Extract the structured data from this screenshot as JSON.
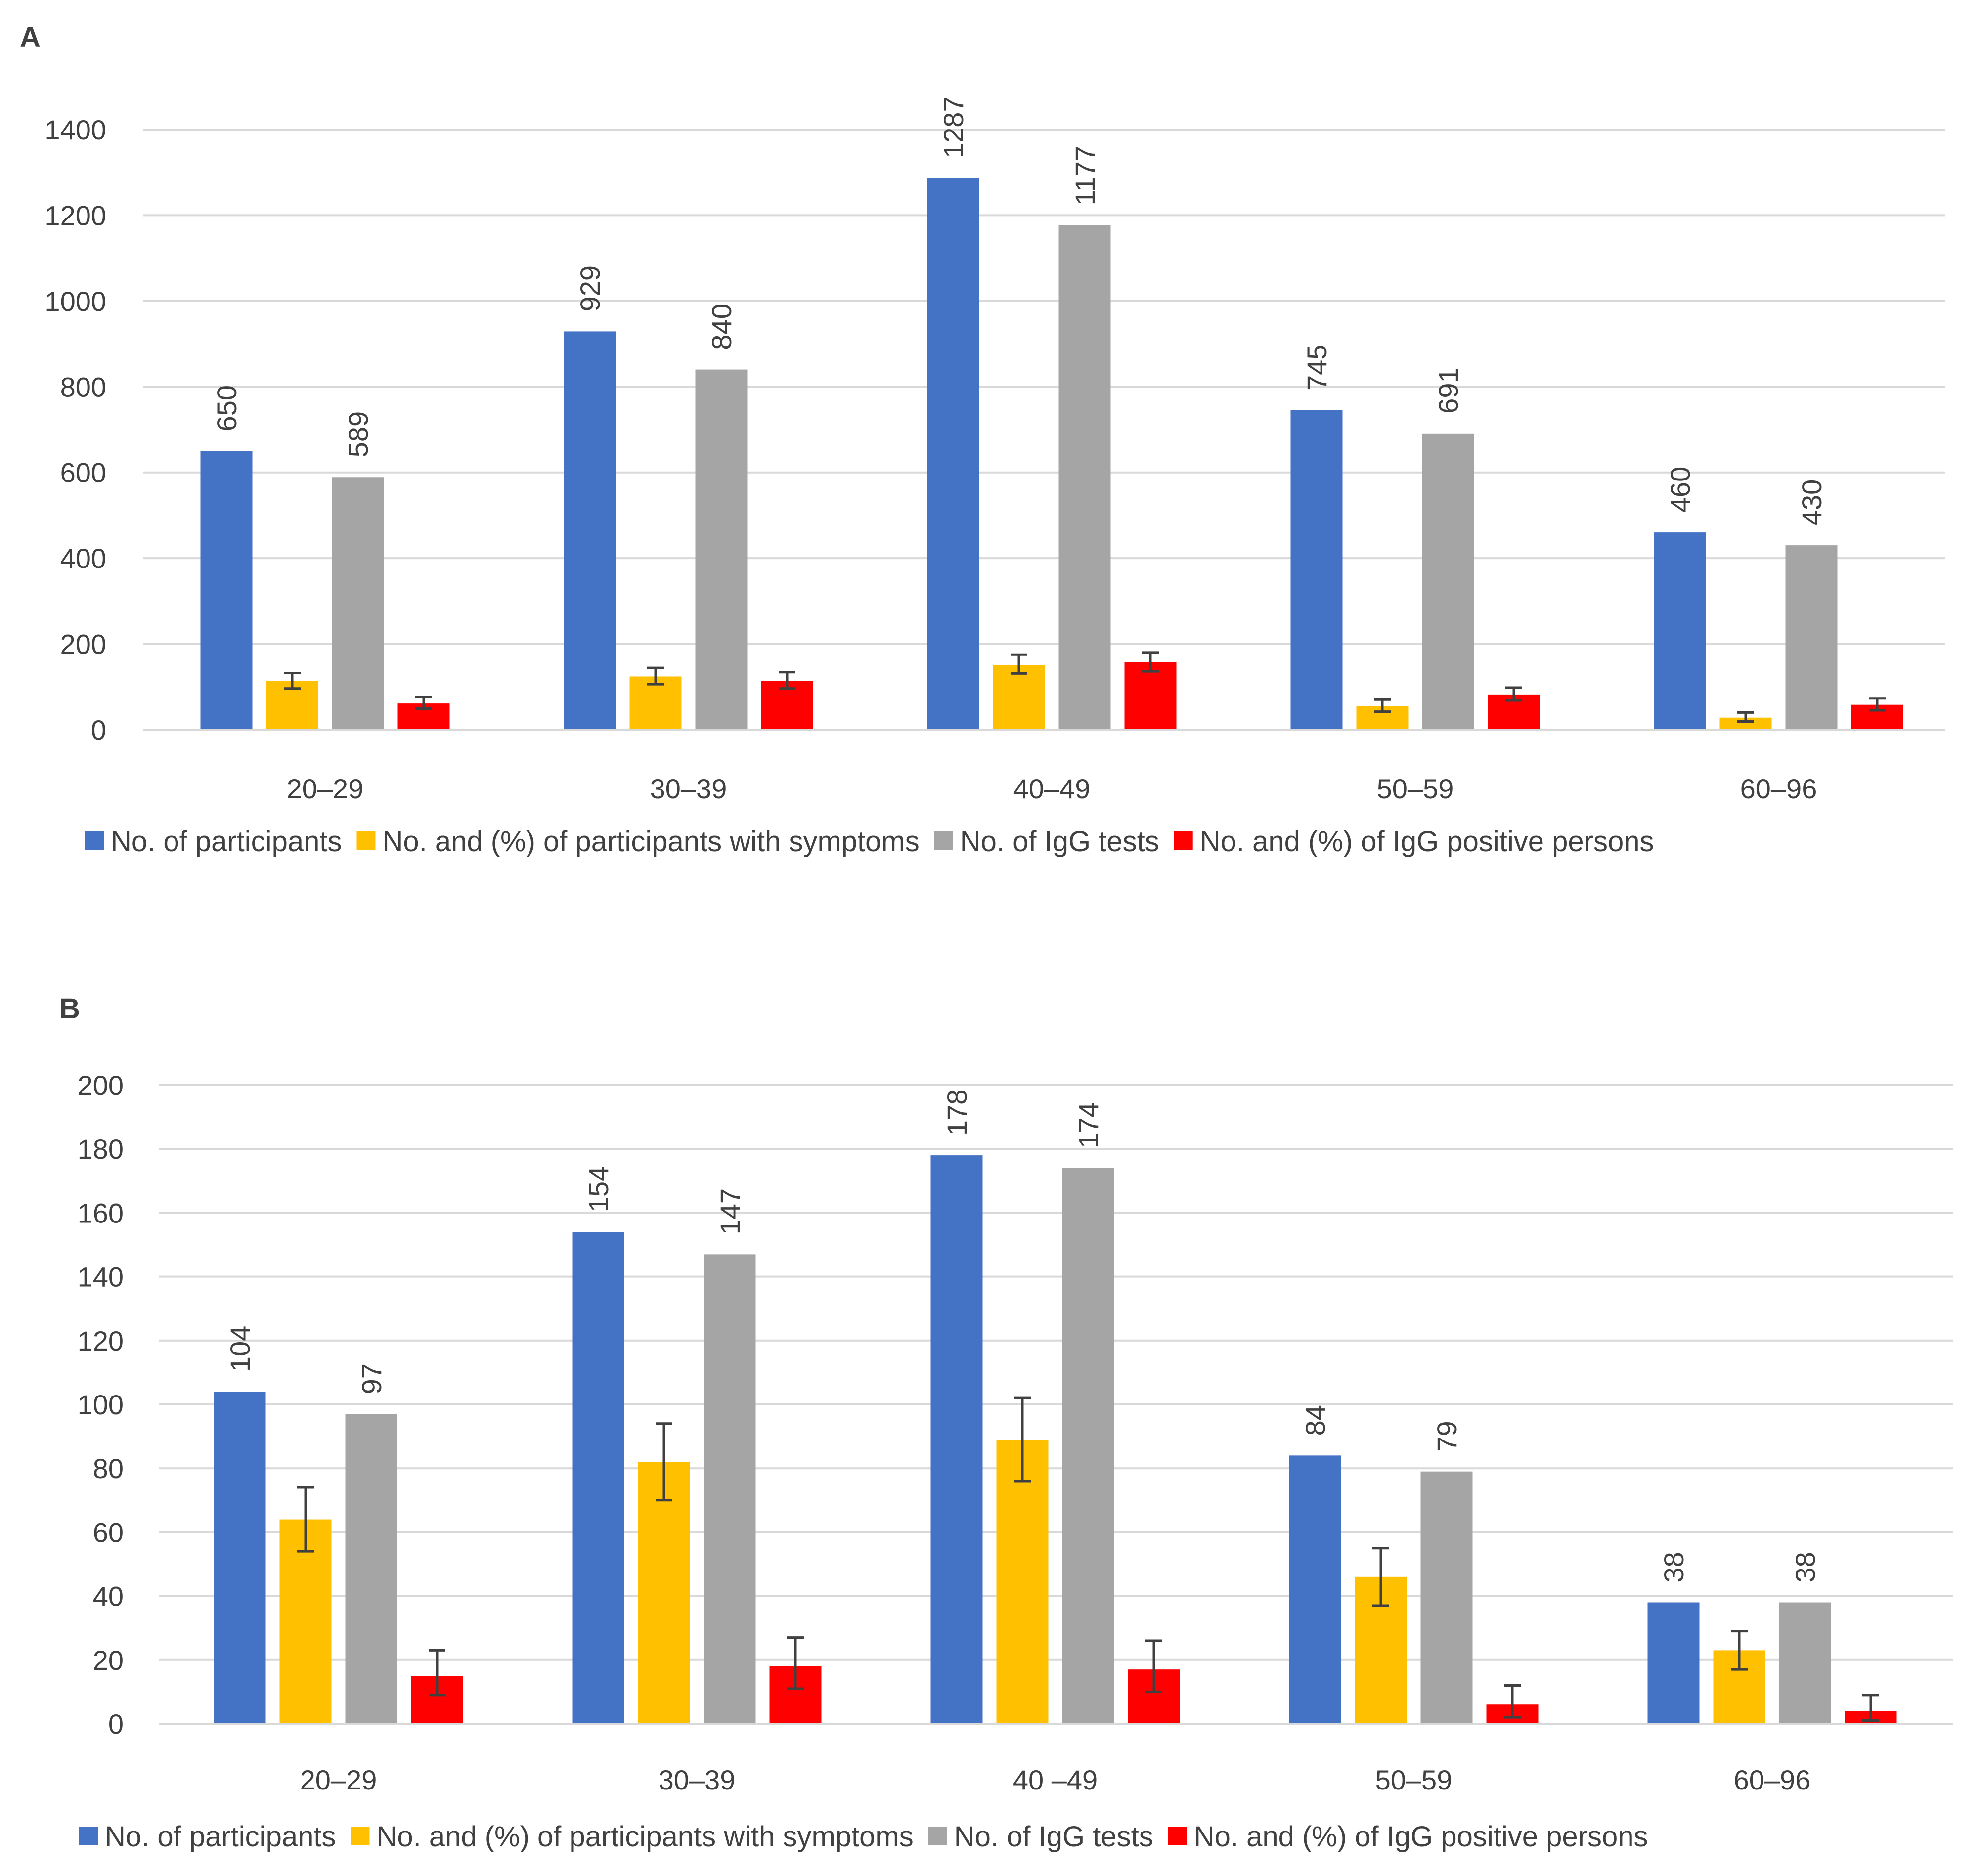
{
  "chart_data": [
    {
      "panel_label": "A",
      "type": "bar",
      "categories": [
        "20–29",
        "30–39",
        "40–49",
        "50–59",
        "60–96"
      ],
      "ylim": [
        0,
        1400
      ],
      "yticks": [
        0,
        200,
        400,
        600,
        800,
        1000,
        1200,
        1400
      ],
      "grid": true,
      "legend_position": "bottom",
      "series": [
        {
          "name": "No. of participants",
          "color": "#4472C4",
          "values": [
            650,
            929,
            1287,
            745,
            460
          ],
          "labels": [
            "650",
            "929",
            "1287",
            "745",
            "460"
          ]
        },
        {
          "name": "No. and (%) of participants with symptoms",
          "color": "#FFC000",
          "values": [
            113,
            124,
            151,
            55,
            28
          ],
          "error": [
            [
              96,
              132
            ],
            [
              106,
              144
            ],
            [
              131,
              175
            ],
            [
              42,
              70
            ],
            [
              19,
              40
            ]
          ]
        },
        {
          "name": "No. of IgG tests",
          "color": "#A5A5A5",
          "values": [
            589,
            840,
            1177,
            691,
            430
          ],
          "labels": [
            "589",
            "840",
            "1177",
            "691",
            "430"
          ]
        },
        {
          "name": "No. and (%) of IgG positive persons",
          "color": "#FF0000",
          "values": [
            61,
            114,
            157,
            82,
            58
          ],
          "error": [
            [
              49,
              76
            ],
            [
              96,
              134
            ],
            [
              136,
              180
            ],
            [
              68,
              98
            ],
            [
              45,
              73
            ]
          ]
        }
      ]
    },
    {
      "panel_label": "B",
      "type": "bar",
      "categories": [
        "20–29",
        "30–39",
        "40 –49",
        "50–59",
        "60–96"
      ],
      "ylim": [
        0,
        200
      ],
      "yticks": [
        0,
        20,
        40,
        60,
        80,
        100,
        120,
        140,
        160,
        180,
        200
      ],
      "grid": true,
      "legend_position": "bottom",
      "series": [
        {
          "name": "No. of participants",
          "color": "#4472C4",
          "values": [
            104,
            154,
            178,
            84,
            38
          ],
          "labels": [
            "104",
            "154",
            "178",
            "84",
            "38"
          ]
        },
        {
          "name": "No. and (%) of participants with symptoms",
          "color": "#FFC000",
          "values": [
            64,
            82,
            89,
            46,
            23
          ],
          "error": [
            [
              54,
              74
            ],
            [
              70,
              94
            ],
            [
              76,
              102
            ],
            [
              37,
              55
            ],
            [
              17,
              29
            ]
          ]
        },
        {
          "name": "No. of IgG tests",
          "color": "#A5A5A5",
          "values": [
            97,
            147,
            174,
            79,
            38
          ],
          "labels": [
            "97",
            "147",
            "174",
            "79",
            "38"
          ]
        },
        {
          "name": "No. and (%) of IgG positive persons",
          "color": "#FF0000",
          "values": [
            15,
            18,
            17,
            6,
            4
          ],
          "error": [
            [
              9,
              23
            ],
            [
              11,
              27
            ],
            [
              10,
              26
            ],
            [
              2,
              12
            ],
            [
              1,
              9
            ]
          ]
        }
      ]
    }
  ]
}
